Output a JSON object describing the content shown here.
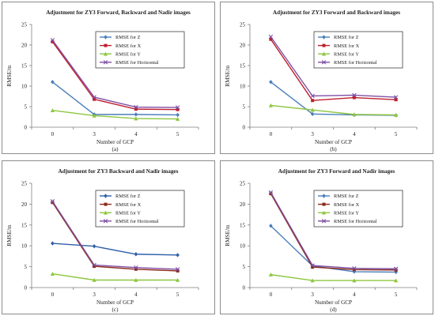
{
  "chart_data": [
    {
      "type": "line",
      "title": "Adjustment for ZY3 Forward, Backward and Nadir images",
      "xlabel": "Number of GCP",
      "ylabel": "RMSE/m",
      "caption": "(a)",
      "categories": [
        "0",
        "3",
        "4",
        "5"
      ],
      "ylim": [
        0,
        25
      ],
      "yticks": [
        0,
        5,
        10,
        15,
        20,
        25
      ],
      "grid": false,
      "legend": "top-right",
      "series": [
        {
          "name": "RMSE for Z",
          "color": "#4a7ebb",
          "marker": "diamond",
          "values": [
            11.0,
            3.1,
            3.1,
            3.0
          ]
        },
        {
          "name": "RMSE for X",
          "color": "#be1e2d",
          "marker": "square",
          "values": [
            20.8,
            6.8,
            4.4,
            4.3
          ]
        },
        {
          "name": "RMSE for Y",
          "color": "#8dc63f",
          "marker": "triangle",
          "values": [
            4.1,
            2.8,
            2.1,
            2.0
          ]
        },
        {
          "name": "RMSE for Horizontal",
          "color": "#7f4fa3",
          "marker": "x",
          "values": [
            21.2,
            7.3,
            4.9,
            4.8
          ]
        }
      ]
    },
    {
      "type": "line",
      "title": "Adjustment for ZY3 Forward and Backward images",
      "xlabel": "Number of GCP",
      "ylabel": "RMSE/m",
      "caption": "(b)",
      "categories": [
        "0",
        "3",
        "4",
        "5"
      ],
      "ylim": [
        0,
        25
      ],
      "yticks": [
        0,
        5,
        10,
        15,
        20,
        25
      ],
      "grid": false,
      "legend": "top-right",
      "series": [
        {
          "name": "RMSE for Z",
          "color": "#4a7ebb",
          "marker": "diamond",
          "values": [
            11.0,
            3.2,
            3.0,
            2.9
          ]
        },
        {
          "name": "RMSE for X",
          "color": "#be1e2d",
          "marker": "square",
          "values": [
            21.4,
            6.5,
            7.2,
            6.7
          ]
        },
        {
          "name": "RMSE for Y",
          "color": "#8dc63f",
          "marker": "triangle",
          "values": [
            5.3,
            4.2,
            3.1,
            3.0
          ]
        },
        {
          "name": "RMSE for Horizontal",
          "color": "#7f4fa3",
          "marker": "x",
          "values": [
            22.0,
            7.6,
            7.8,
            7.3
          ]
        }
      ]
    },
    {
      "type": "line",
      "title": "Adjustment for ZY3 Backward and Nadir images",
      "xlabel": "Number of GCP",
      "ylabel": "RMSE/m",
      "caption": "(c)",
      "categories": [
        "0",
        "3",
        "4",
        "5"
      ],
      "ylim": [
        0,
        25
      ],
      "yticks": [
        0,
        5,
        10,
        15,
        20,
        25
      ],
      "grid": false,
      "legend": "top-right",
      "series": [
        {
          "name": "RMSE for Z",
          "color": "#2e5fa8",
          "marker": "diamond",
          "values": [
            10.6,
            9.9,
            8.0,
            7.8
          ]
        },
        {
          "name": "RMSE for X",
          "color": "#8b2a1a",
          "marker": "square",
          "values": [
            20.4,
            5.1,
            4.4,
            4.0
          ]
        },
        {
          "name": "RMSE for Y",
          "color": "#8dc63f",
          "marker": "triangle",
          "values": [
            3.3,
            1.8,
            1.8,
            1.8
          ]
        },
        {
          "name": "RMSE for Horizontal",
          "color": "#7f4fa3",
          "marker": "x",
          "values": [
            20.7,
            5.4,
            4.8,
            4.4
          ]
        }
      ]
    },
    {
      "type": "line",
      "title": "Adjustment for ZY3 Forward and Nadir images",
      "xlabel": "Number of GCP",
      "ylabel": "RMSE/m",
      "caption": "(d)",
      "categories": [
        "0",
        "3",
        "4",
        "5"
      ],
      "ylim": [
        0,
        25
      ],
      "yticks": [
        0,
        5,
        10,
        15,
        20,
        25
      ],
      "grid": false,
      "legend": "top-right",
      "series": [
        {
          "name": "RMSE for Z",
          "color": "#4a7ebb",
          "marker": "diamond",
          "values": [
            14.8,
            5.2,
            3.8,
            3.7
          ]
        },
        {
          "name": "RMSE for X",
          "color": "#8b2a1a",
          "marker": "square",
          "values": [
            22.5,
            4.9,
            4.3,
            4.2
          ]
        },
        {
          "name": "RMSE for Y",
          "color": "#8dc63f",
          "marker": "triangle",
          "values": [
            3.1,
            1.7,
            1.7,
            1.7
          ]
        },
        {
          "name": "RMSE for Horizontal",
          "color": "#7f4fa3",
          "marker": "x",
          "values": [
            22.8,
            5.3,
            4.6,
            4.5
          ]
        }
      ]
    }
  ]
}
